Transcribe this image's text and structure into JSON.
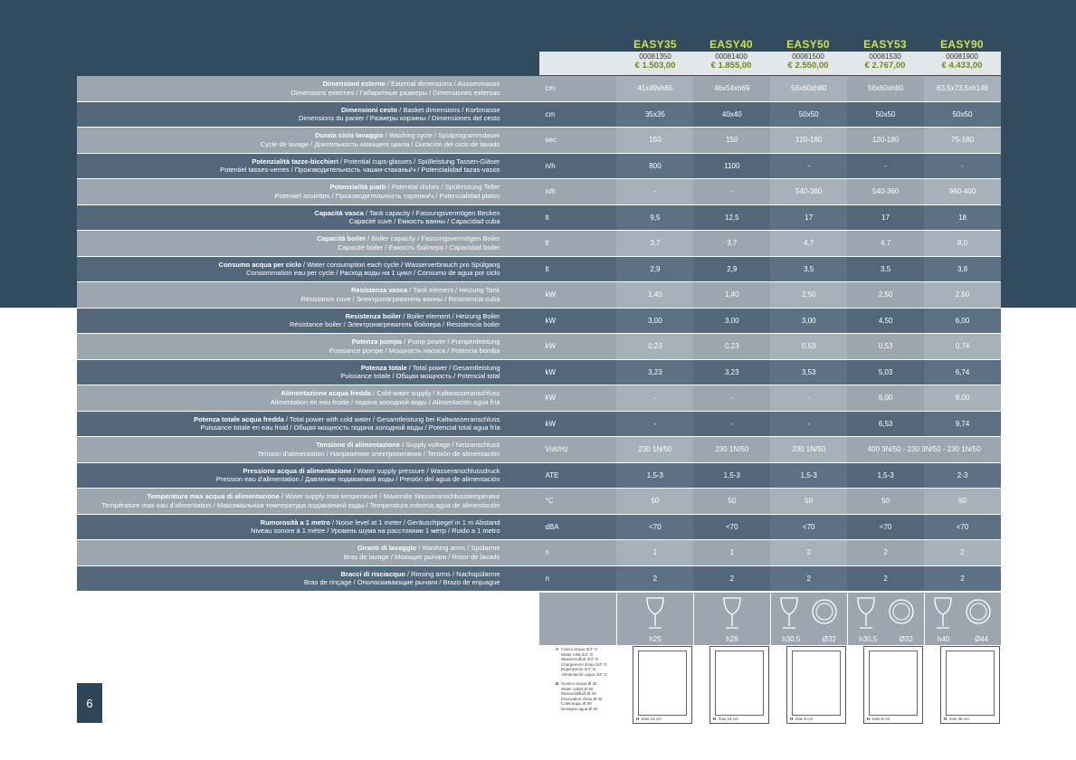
{
  "page_number": "6",
  "models": [
    {
      "name": "EASY35",
      "code": "00081350",
      "price": "€ 1.503,00"
    },
    {
      "name": "EASY40",
      "code": "00081400",
      "price": "€ 1.855,00"
    },
    {
      "name": "EASY50",
      "code": "00081500",
      "price": "€ 2.550,00"
    },
    {
      "name": "EASY53",
      "code": "00081530",
      "price": "€ 2.767,00"
    },
    {
      "name": "EASY90",
      "code": "00081900",
      "price": "€ 4.433,00"
    }
  ],
  "rows": [
    {
      "bold": "Dimensioni esterne",
      "rest1": " / External dimensions / Aussenmasse",
      "line2": "Dimensions externes / Габаритные размеры / Dimensiones externas",
      "unit": "cm",
      "values": [
        "41x49xh65",
        "46x54xh69",
        "56x60xh80",
        "56x60xh80",
        "63,5x73,5xh146"
      ]
    },
    {
      "bold": "Dimensioni cesto",
      "rest1": " / Basket dimensions / Korbmasse",
      "line2": "Dimensions du panier / Размеры корзины / Dimensiones del cesto",
      "unit": "cm",
      "values": [
        "35x35",
        "40x40",
        "50x50",
        "50x50",
        "50x50"
      ]
    },
    {
      "bold": "Durata ciclo lavaggio",
      "rest1": " / Washing cycle / Spülprogrammdauer",
      "line2": "Cycle de lavage / Длительность моющего цикла / Duración del ciclo de lavado",
      "unit": "sec",
      "values": [
        "150",
        "150",
        "120-180",
        "120-180",
        "75-180"
      ]
    },
    {
      "bold": "Potenzialità tazze-bicchieri",
      "rest1": " / Potential cups-glasses / Spülleistung Tassen-Gläser",
      "line2": "Potentiel tasses-verres / Производительность чашки-стаканы/ч / Potencialidad tazas-vasos",
      "unit": "n/h",
      "values": [
        "800",
        "1100",
        "-",
        "-",
        "-"
      ]
    },
    {
      "bold": "Potenzialità piatti",
      "rest1": " / Potential dishes / Spülleistung Teller",
      "line2": "Potentiel assiettes / Производительность тарелки/ч / Potencialidad platos",
      "unit": "n/h",
      "values": [
        "-",
        "-",
        "540-360",
        "540-360",
        "960-400"
      ]
    },
    {
      "bold": "Capacità vasca",
      "rest1": " / Tank capacity / Fassungsvermögen Becken",
      "line2": "Capacité cuve / Емкость ванны / Capacidad cuba",
      "unit": "lt",
      "values": [
        "9,5",
        "12,5",
        "17",
        "17",
        "18"
      ]
    },
    {
      "bold": "Capacità boiler",
      "rest1": " / Boiler capacity / Fassungsvermögen Boiler",
      "line2": "Capacité boiler / Емкость бойлера / Capacidad boiler",
      "unit": "lt",
      "values": [
        "3,7",
        "3,7",
        "4,7",
        "4,7",
        "8,0"
      ]
    },
    {
      "bold": "Consumo acqua per ciclo",
      "rest1": " / Water consumption each cycle / Wasserverbrauch pro Spülgang",
      "line2": "Consommation eau per cycle / Расход воды на 1 цикл / Consumo de agua por ciclo",
      "unit": "lt",
      "values": [
        "2,9",
        "2,9",
        "3,5",
        "3,5",
        "3,8"
      ]
    },
    {
      "bold": "Resistenza vasca",
      "rest1": " / Tank element / Heizung Tank",
      "line2": "Résistance cuve / Электронагреватель ванны / Resistencia cuba",
      "unit": "kW",
      "values": [
        "1,40",
        "1,40",
        "2,50",
        "2,50",
        "2,50"
      ]
    },
    {
      "bold": "Resistenza boiler",
      "rest1": " / Boiler element / Heizung Boiler",
      "line2": "Résistance boiler / Электронагреватель бойлера / Resistencia boiler",
      "unit": "kW",
      "values": [
        "3,00",
        "3,00",
        "3,00",
        "4,50",
        "6,00"
      ]
    },
    {
      "bold": "Potenza pompa",
      "rest1": " / Pump power / Pumpenleistung",
      "line2": "Puissance pompe / Мощность насоса / Potencia bomba",
      "unit": "kW",
      "values": [
        "0,23",
        "0,23",
        "0,53",
        "0,53",
        "0,74"
      ]
    },
    {
      "bold": "Potenza totale",
      "rest1": " / Total power / Gesamtleistung",
      "line2": "Puissance totale / Общая мощность / Potencial total",
      "unit": "kW",
      "values": [
        "3,23",
        "3,23",
        "3,53",
        "5,03",
        "6,74"
      ]
    },
    {
      "bold": "Alimentazione acqua fredda",
      "rest1": " / Cold-water supply / Kaltwasseranschluss",
      "line2": "Alimentation en eau froide / подача холодной воды / Alimentación agua fría",
      "unit": "kW",
      "values": [
        "-",
        "-",
        "-",
        "6,00",
        "9,00"
      ]
    },
    {
      "bold": "Potenza totale acqua fredda",
      "rest1": " / Total power with cold water / Gesamtleistung bei Kaltwasseranschluss",
      "line2": "Puissance totale en eau froid / Общая мощность подача холодной воды / Potencial total agua fría",
      "unit": "kW",
      "values": [
        "-",
        "-",
        "-",
        "6,53",
        "9,74"
      ]
    },
    {
      "bold": "Tensione di alimentazione",
      "rest1": " / Supply voltage / Netzanschluss",
      "line2": "Tension d'alimentation / Напряжение электропитания / Tensión de alimentación",
      "unit": "Volt/Hz",
      "values": [
        "230 1N/50",
        "230 1N/50",
        "230 1N/50",
        "400 3N/50 - 230 3N/50 - 230 1N/50",
        ""
      ]
    },
    {
      "bold": "Pressione acqua di alimentazione",
      "rest1": " / Water supply pressure / Wasseranschlussdruck",
      "line2": "Pression eau d'alimentation / Давление подаваемой воды / Presión del agua de alimentación",
      "unit": "ATE",
      "values": [
        "1,5-3",
        "1,5-3",
        "1,5-3",
        "1,5-3",
        "2-3"
      ]
    },
    {
      "bold": "Temperatura max acqua di alimentazione",
      "rest1": " / Water supply max temperature / Maximale Wasseranschlusstemperatur",
      "line2": "Température max eau d'alimentation / Максимальная температура подаваемой воды / Temperatura máxima agua de alimentación",
      "unit": "°C",
      "values": [
        "50",
        "50",
        "50",
        "50",
        "50"
      ]
    },
    {
      "bold": "Rumorosità a 1 metro",
      "rest1": " / Noise level at 1 meter / Geräuschpegel in 1 m Abstand",
      "line2": "Niveau sonore à 1 mètre / Уровень шума на расстоянии 1 метр / Ruido a 1 metro",
      "unit": "dBA",
      "values": [
        "<70",
        "<70",
        "<70",
        "<70",
        "<70"
      ]
    },
    {
      "bold": "Giranti di lavaggio",
      "rest1": " / Washing arms / Spülarme",
      "line2": "Bras de lavage / Моющие рычаги / Rotor de lavado",
      "unit": "n",
      "values": [
        "1",
        "1",
        "2",
        "2",
        "2"
      ]
    },
    {
      "bold": "Bracci di risciacquo",
      "rest1": " / Rinsing arms / Nachspülarme",
      "line2": "Bras de rinçage / Ополаскивающие рычаги / Brazo de enjuague",
      "unit": "n",
      "values": [
        "2",
        "2",
        "2",
        "2",
        "2"
      ]
    }
  ],
  "glass_heights": [
    {
      "h": "h25",
      "plate": ""
    },
    {
      "h": "h29",
      "plate": ""
    },
    {
      "h": "h30,5",
      "plate": "Ø32"
    },
    {
      "h": "h30,5",
      "plate": "Ø32"
    },
    {
      "h": "h40",
      "plate": "Ø44"
    }
  ],
  "notes": {
    "a_key": "A",
    "a_lines": [
      "Carico acqua 3/4\" G",
      "Water inlet 3/4\" G",
      "Wasserzufluß 3/4\" G",
      "Chargement d'eau 3/4\" G",
      "Водоприток 3/4\" G",
      "Alimentación agua 3/4\" G"
    ],
    "b_key": "B",
    "b_lines": [
      "Scarico acqua Ø 30",
      "Water outlet Ø 30",
      "Wasserabfluß Ø 30",
      "Évacuation d'eau Ø 30",
      "Слив воды Ø 30",
      "Desagüe agua Ø 30"
    ]
  },
  "drawings": [
    {
      "h_label": "H",
      "h_value": "max 13 cm"
    },
    {
      "h_label": "H",
      "h_value": "max 14 cm"
    },
    {
      "h_label": "H",
      "h_value": "max 8 cm"
    },
    {
      "h_label": "H",
      "h_value": "max 8 cm"
    },
    {
      "h_label": "H",
      "h_value": "max 45 cm"
    }
  ]
}
